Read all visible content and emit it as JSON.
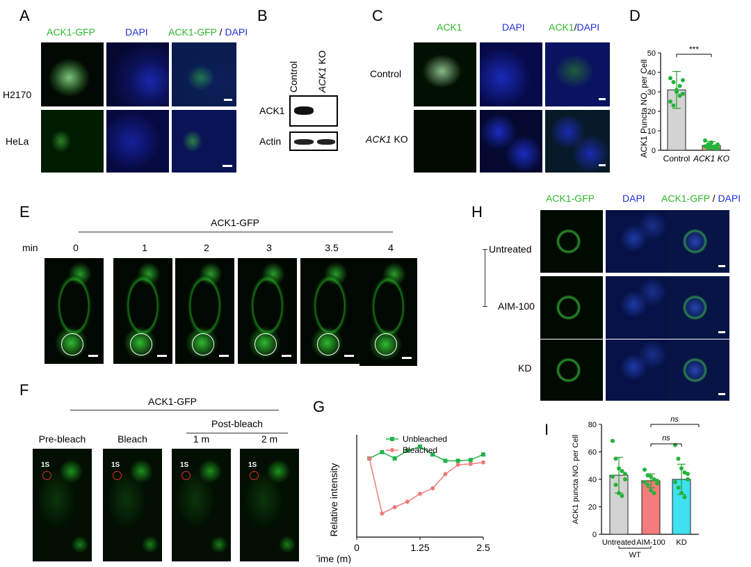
{
  "panels": {
    "A": {
      "label": "A",
      "columns": [
        "ACK1-GFP",
        "DAPI"
      ],
      "merge_green": "ACK1-GFP",
      "merge_sep": " / ",
      "merge_blue": "DAPI",
      "rows": [
        "H2170",
        "HeLa"
      ]
    },
    "B": {
      "label": "B",
      "lanes": [
        "Control",
        "ACK1"
      ],
      "lane2_suffix": " KO",
      "bands": [
        "ACK1",
        "Actin"
      ]
    },
    "C": {
      "label": "C",
      "columns": [
        "ACK1",
        "DAPI"
      ],
      "merge_green": "ACK1",
      "merge_sep": "/",
      "merge_blue": "DAPI",
      "row1": "Control",
      "row2_italic": "ACK1",
      "row2_suffix": " KO"
    },
    "D": {
      "label": "D"
    },
    "E": {
      "label": "E",
      "header": "ACK1-GFP",
      "time_unit": "min",
      "times": [
        "0",
        "1",
        "2",
        "3",
        "3.5",
        "4"
      ]
    },
    "F": {
      "label": "F",
      "header": "ACK1-GFP",
      "postbleach": "Post-bleach",
      "columns": [
        "Pre-bleach",
        "Bleach",
        "1 m",
        "2 m"
      ],
      "roi": "1S"
    },
    "G": {
      "label": "G"
    },
    "H": {
      "label": "H",
      "columns": [
        "ACK1-GFP",
        "DAPI"
      ],
      "merge_green": "ACK1-GFP",
      "merge_sep": " / ",
      "merge_blue": "DAPI",
      "rows": [
        "Untreated",
        "AIM-100",
        "KD"
      ]
    },
    "I": {
      "label": "I"
    }
  },
  "chart_data": [
    {
      "id": "D",
      "type": "bar",
      "categories": [
        "Control",
        "ACK1 KO"
      ],
      "values": [
        31,
        2.5
      ],
      "errors": [
        9.5,
        2
      ],
      "points": [
        [
          37,
          35,
          31,
          28,
          29,
          25,
          23,
          30,
          33,
          36
        ],
        [
          5,
          3,
          2,
          1,
          3,
          2,
          1,
          4,
          2,
          1
        ]
      ],
      "colors": [
        "#d3d3d3",
        "#f39a8f"
      ],
      "ylabel": "ACK1 Puncta NO. per Cell",
      "ylim": [
        0,
        50
      ],
      "yticks": [
        0,
        10,
        20,
        30,
        40,
        50
      ],
      "significance": "***",
      "grid": false
    },
    {
      "id": "G",
      "type": "line",
      "xlabel": "Time (m)",
      "ylabel": "Relative intensity",
      "xticks": [
        "0",
        "1.25",
        "2.5"
      ],
      "xlim": [
        0,
        2.5
      ],
      "ylim": [
        0,
        1.3
      ],
      "legend_position": "top-right",
      "series": [
        {
          "name": "Unbleached",
          "color": "#22b14c",
          "x": [
            0.25,
            0.5,
            0.75,
            1.0,
            1.25,
            1.5,
            1.75,
            2.0,
            2.25,
            2.5
          ],
          "y": [
            1.0,
            1.08,
            1.0,
            1.1,
            1.15,
            1.05,
            0.97,
            0.97,
            0.98,
            1.05
          ]
        },
        {
          "name": "Bleached",
          "color": "#ee7b7b",
          "x": [
            0.25,
            0.5,
            0.75,
            1.0,
            1.25,
            1.5,
            1.75,
            2.0,
            2.25,
            2.5
          ],
          "y": [
            1.0,
            0.3,
            0.38,
            0.45,
            0.55,
            0.62,
            0.8,
            0.92,
            0.93,
            0.95
          ]
        }
      ],
      "grid": false
    },
    {
      "id": "I",
      "type": "bar",
      "categories": [
        "Untreated",
        "AIM-100",
        "KD"
      ],
      "group_label": "WT",
      "values": [
        43,
        39,
        40
      ],
      "errors": [
        13,
        5,
        11
      ],
      "points": [
        [
          68,
          55,
          48,
          46,
          44,
          42,
          36,
          30,
          28,
          40
        ],
        [
          47,
          43,
          42,
          40,
          39,
          38,
          36,
          32,
          30,
          37
        ],
        [
          65,
          55,
          48,
          45,
          40,
          38,
          34,
          30,
          27,
          44
        ]
      ],
      "colors": [
        "#d3d3d3",
        "#f47c7c",
        "#3fe0f0"
      ],
      "ylabel": "ACK1 puncta NO. per Cell",
      "ylim": [
        0,
        80
      ],
      "yticks": [
        0,
        20,
        40,
        60,
        80
      ],
      "significance": [
        "ns",
        "ns"
      ],
      "grid": false
    }
  ]
}
